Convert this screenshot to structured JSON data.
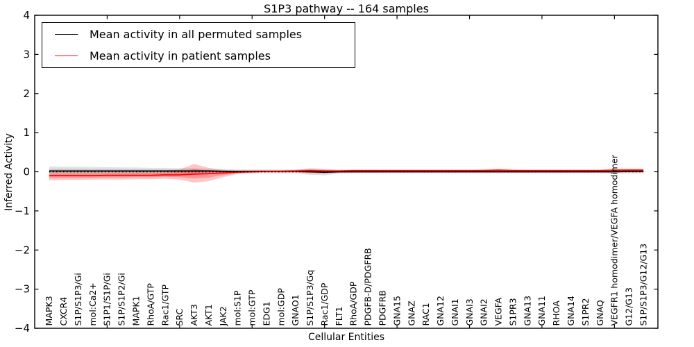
{
  "figure": {
    "background": "#ffffff",
    "frame_color": "#000000"
  },
  "chart_data": {
    "type": "line",
    "title": "S1P3 pathway -- 164 samples",
    "xlabel": "Cellular Entities",
    "ylabel": "Inferred Activity",
    "ylim": [
      -4,
      4
    ],
    "yticks": [
      4,
      3,
      2,
      1,
      0,
      -1,
      -2,
      -3,
      -4
    ],
    "xlim": [
      0,
      43
    ],
    "xticks_numeric": [
      5,
      10,
      15,
      20,
      25,
      30,
      35,
      40
    ],
    "grid": false,
    "zero_line": {
      "style": "dotted",
      "color": "#000000",
      "y": 0
    },
    "legend": {
      "position": "upper left",
      "entries": [
        {
          "label": "Mean activity in all permuted samples",
          "color": "#000000"
        },
        {
          "label": "Mean activity in patient samples",
          "color": "#ff0000"
        }
      ]
    },
    "categories": [
      "MAPK3",
      "CXCR4",
      "S1P/S1P3/Gi",
      "mol:Ca2+",
      "S1P1/S1P/Gi",
      "S1P/S1P2/Gi",
      "MAPK1",
      "RhoA/GTP",
      "Rac1/GTP",
      "SRC",
      "AKT3",
      "AKT1",
      "JAK2",
      "mol:S1P",
      "mol:GTP",
      "EDG1",
      "mol:GDP",
      "GNAO1",
      "S1P/S1P3/Gq",
      "Rac1/GDP",
      "FLT1",
      "RhoA/GDP",
      "PDGFB-D/PDGFRB",
      "PDGFRB",
      "GNA15",
      "GNAZ",
      "RAC1",
      "GNA12",
      "GNAI1",
      "GNAI3",
      "GNAI2",
      "VEGFA",
      "S1PR3",
      "GNA13",
      "GNA11",
      "RHOA",
      "GNA14",
      "S1PR2",
      "GNAQ",
      "VEGFR1 homodimer/VEGFA homodimer",
      "G12/G13",
      "S1P/S1P3/G12/G13"
    ],
    "series": [
      {
        "name": "Mean activity in all permuted samples",
        "color": "#000000",
        "band_color": "#7f7f7f",
        "values": [
          0.02,
          0.02,
          0.02,
          0.02,
          0.02,
          0.02,
          0.02,
          0.02,
          0.02,
          0.02,
          0.02,
          0.02,
          0.01,
          0.01,
          0.01,
          0.01,
          0.01,
          0.01,
          0.0,
          -0.01,
          0.0,
          0.0,
          0.0,
          0.0,
          0.0,
          0.0,
          0.0,
          0.0,
          0.0,
          0.0,
          0.0,
          0.0,
          0.0,
          0.0,
          0.0,
          0.0,
          0.0,
          0.0,
          0.0,
          0.0,
          0.01,
          0.01
        ],
        "band_upper": [
          0.14,
          0.13,
          0.13,
          0.12,
          0.12,
          0.11,
          0.11,
          0.1,
          0.1,
          0.09,
          0.09,
          0.08,
          0.07,
          0.06,
          0.06,
          0.06,
          0.06,
          0.06,
          0.09,
          0.08,
          0.05,
          0.05,
          0.05,
          0.04,
          0.04,
          0.04,
          0.04,
          0.04,
          0.04,
          0.04,
          0.04,
          0.05,
          0.04,
          0.04,
          0.04,
          0.04,
          0.04,
          0.04,
          0.04,
          0.05,
          0.06,
          0.06
        ],
        "band_lower": [
          -0.07,
          -0.07,
          -0.07,
          -0.07,
          -0.06,
          -0.06,
          -0.06,
          -0.06,
          -0.06,
          -0.06,
          -0.06,
          -0.05,
          -0.05,
          -0.04,
          -0.04,
          -0.04,
          -0.04,
          -0.04,
          -0.08,
          -0.09,
          -0.05,
          -0.04,
          -0.04,
          -0.04,
          -0.04,
          -0.04,
          -0.04,
          -0.04,
          -0.04,
          -0.04,
          -0.04,
          -0.04,
          -0.04,
          -0.04,
          -0.04,
          -0.04,
          -0.04,
          -0.04,
          -0.04,
          -0.05,
          -0.05,
          -0.05
        ]
      },
      {
        "name": "Mean activity in patient samples",
        "color": "#ff0000",
        "band_color": "#ff0000",
        "values": [
          -0.1,
          -0.1,
          -0.1,
          -0.1,
          -0.09,
          -0.09,
          -0.09,
          -0.09,
          -0.08,
          -0.08,
          -0.06,
          -0.05,
          -0.03,
          -0.01,
          0.0,
          0.01,
          0.01,
          0.02,
          0.03,
          0.02,
          0.02,
          0.03,
          0.03,
          0.03,
          0.03,
          0.03,
          0.03,
          0.03,
          0.03,
          0.03,
          0.03,
          0.04,
          0.03,
          0.03,
          0.03,
          0.03,
          0.03,
          0.03,
          0.03,
          0.04,
          0.04,
          0.04
        ],
        "band_upper": [
          0.0,
          0.0,
          0.01,
          0.01,
          0.01,
          0.01,
          0.02,
          0.02,
          0.03,
          0.06,
          0.2,
          0.1,
          0.05,
          0.02,
          0.03,
          0.04,
          0.04,
          0.05,
          0.08,
          0.06,
          0.05,
          0.06,
          0.06,
          0.06,
          0.06,
          0.06,
          0.06,
          0.06,
          0.06,
          0.06,
          0.07,
          0.08,
          0.07,
          0.06,
          0.06,
          0.06,
          0.06,
          0.06,
          0.06,
          0.08,
          0.08,
          0.08
        ],
        "band_lower": [
          -0.22,
          -0.21,
          -0.21,
          -0.2,
          -0.2,
          -0.2,
          -0.19,
          -0.19,
          -0.18,
          -0.2,
          -0.28,
          -0.24,
          -0.14,
          -0.05,
          -0.03,
          -0.02,
          -0.02,
          -0.02,
          -0.03,
          -0.04,
          -0.02,
          -0.02,
          -0.01,
          -0.01,
          -0.01,
          -0.01,
          -0.01,
          -0.01,
          -0.01,
          -0.01,
          -0.01,
          0.0,
          -0.01,
          -0.01,
          -0.01,
          -0.01,
          -0.01,
          -0.01,
          -0.01,
          0.0,
          0.0,
          0.0
        ]
      }
    ]
  }
}
